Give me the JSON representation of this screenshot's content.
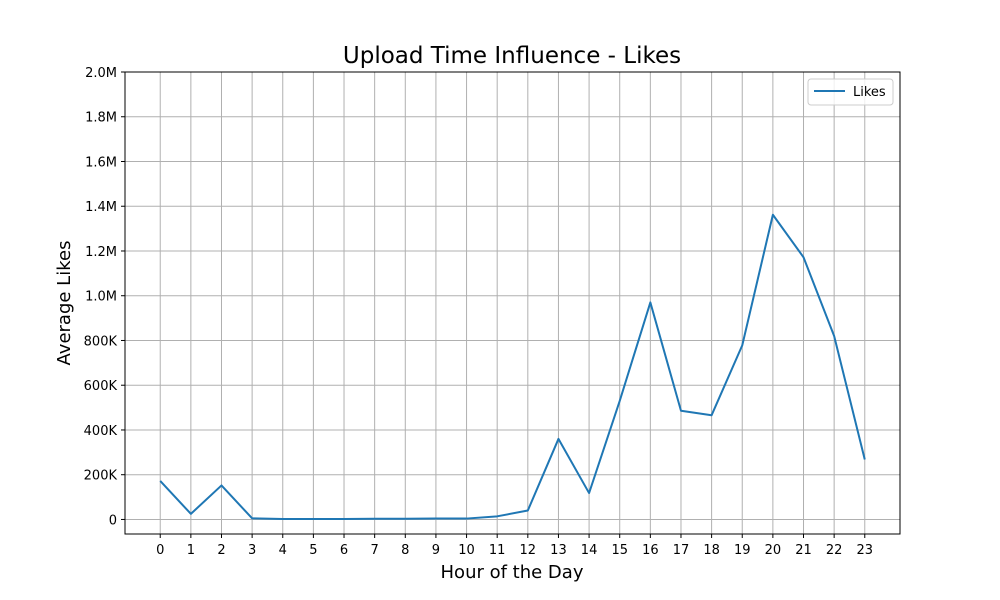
{
  "chart_data": {
    "type": "line",
    "title": "Upload Time Influence - Likes",
    "xlabel": "Hour of the Day",
    "ylabel": "Average Likes",
    "x": [
      0,
      1,
      2,
      3,
      4,
      5,
      6,
      7,
      8,
      9,
      10,
      11,
      12,
      13,
      14,
      15,
      16,
      17,
      18,
      19,
      20,
      21,
      22,
      23
    ],
    "x_tick_labels": [
      "0",
      "1",
      "2",
      "3",
      "4",
      "5",
      "6",
      "7",
      "8",
      "9",
      "10",
      "11",
      "12",
      "13",
      "14",
      "15",
      "16",
      "17",
      "18",
      "19",
      "20",
      "21",
      "22",
      "23"
    ],
    "y_ticks": [
      0,
      200000,
      400000,
      600000,
      800000,
      1000000,
      1200000,
      1400000,
      1600000,
      1800000,
      2000000
    ],
    "y_tick_labels": [
      "0",
      "200K",
      "400K",
      "600K",
      "800K",
      "1.0M",
      "1.2M",
      "1.4M",
      "1.6M",
      "1.8M",
      "2.0M"
    ],
    "xlim": [
      -1.15,
      24.15
    ],
    "ylim": [
      -65000,
      2000000
    ],
    "grid": true,
    "legend_position": "top-right",
    "series": [
      {
        "name": "Likes",
        "color": "#1f77b4",
        "values": [
          172000,
          25000,
          152000,
          5000,
          2000,
          2000,
          2000,
          3000,
          3000,
          4000,
          4000,
          14000,
          40000,
          360000,
          118000,
          530000,
          970000,
          486000,
          466000,
          778000,
          1362000,
          1172000,
          820000,
          268000
        ]
      }
    ]
  }
}
